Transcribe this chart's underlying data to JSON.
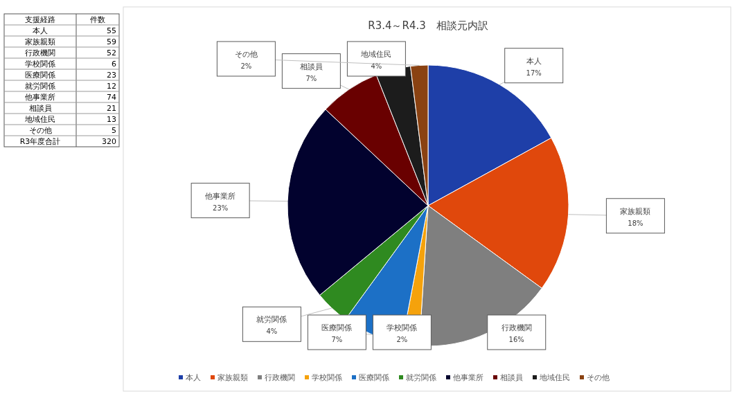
{
  "chart_data": {
    "type": "pie",
    "title": "R3.4～R4.3　相談元内訳",
    "categories": [
      "本人",
      "家族親類",
      "行政機関",
      "学校関係",
      "医療関係",
      "就労関係",
      "他事業所",
      "相談員",
      "地域住民",
      "その他"
    ],
    "values": [
      17,
      18,
      16,
      2,
      7,
      4,
      23,
      7,
      4,
      2
    ],
    "value_labels": [
      "17%",
      "18%",
      "16%",
      "2%",
      "7%",
      "4%",
      "23%",
      "7%",
      "4%",
      "2%"
    ],
    "colors": [
      "#1e3fa8",
      "#e0480c",
      "#7f7f7f",
      "#f5a20c",
      "#1c70c6",
      "#2f8a20",
      "#02022e",
      "#690000",
      "#1c1c1c",
      "#8a4212"
    ],
    "annotations": [
      "支援経路",
      "件数",
      "55",
      "59",
      "52",
      "6",
      "23",
      "12",
      "74",
      "21",
      "13",
      "5",
      "R3年度合計",
      "320"
    ],
    "legend": "bottom"
  }
}
